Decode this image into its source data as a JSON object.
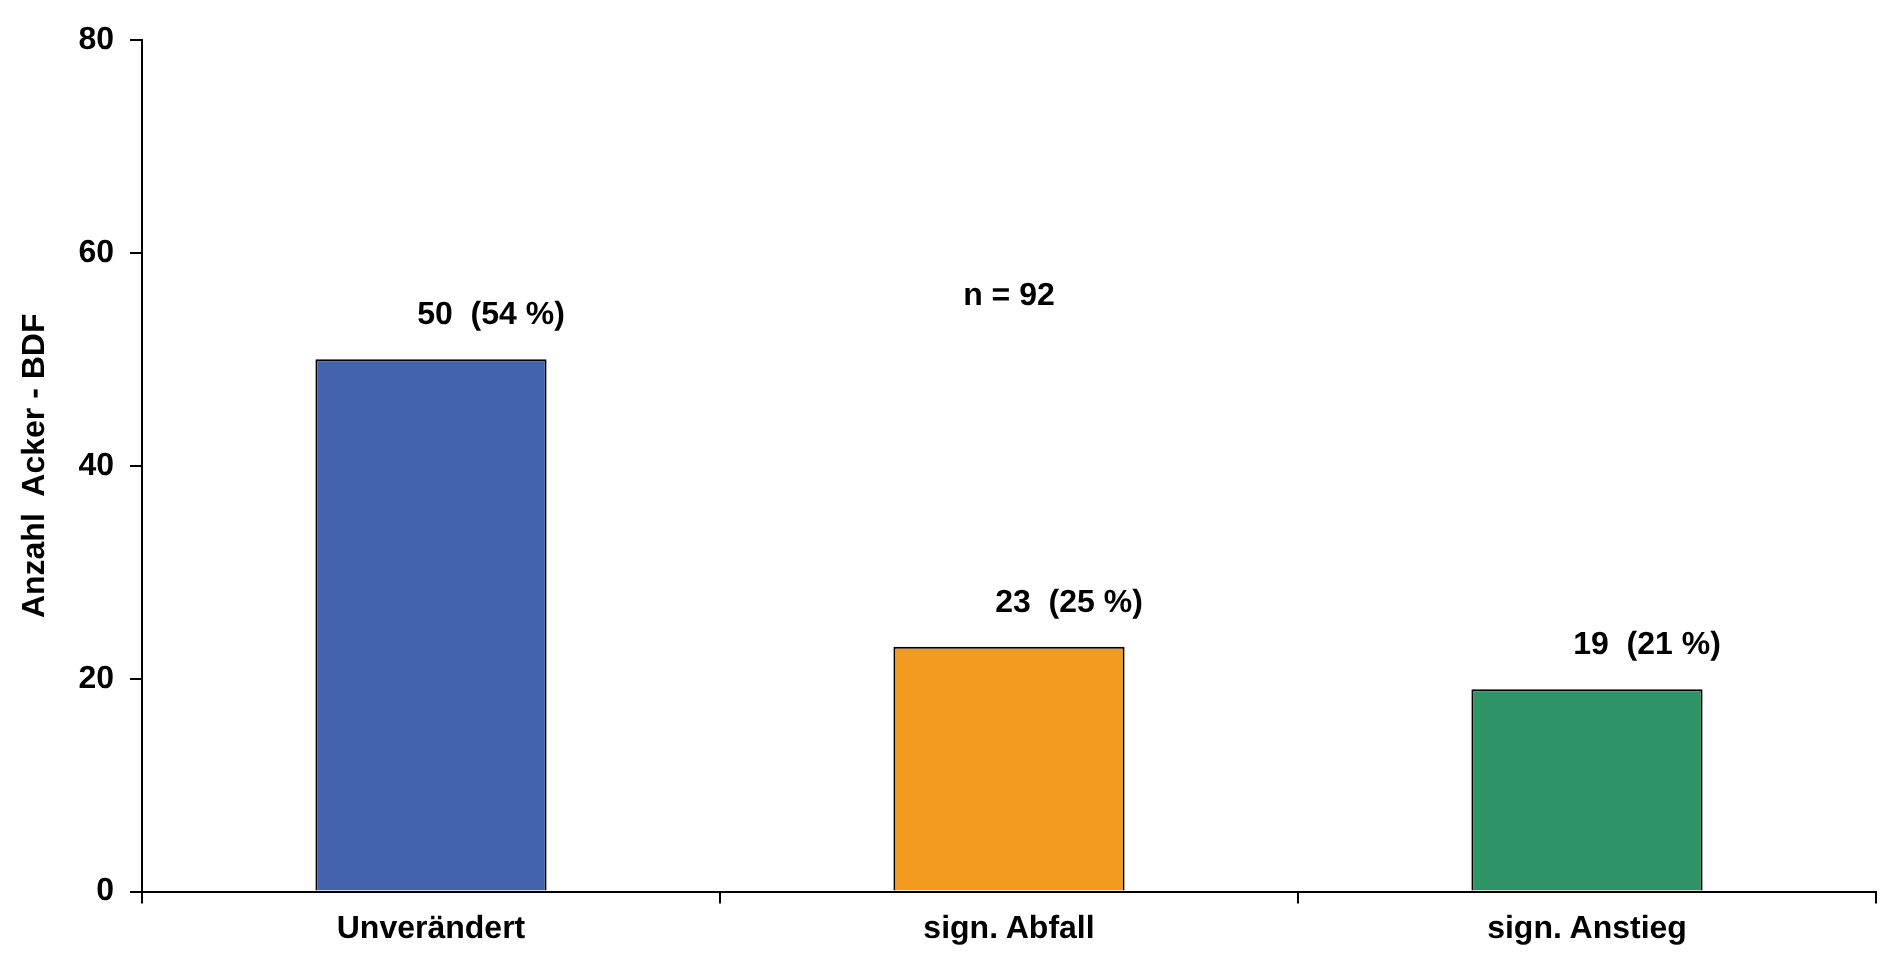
{
  "chart_data": {
    "type": "bar",
    "ylabel": "Anzahl  Acker - BDF",
    "categories": [
      "Unverändert",
      "sign. Abfall",
      "sign. Anstieg"
    ],
    "values": [
      50,
      23,
      19
    ],
    "colors": [
      "#4363ae",
      "#f39a21",
      "#2e9365"
    ],
    "value_labels": [
      "50  (54 %)",
      "23  (25 %)",
      "19  (21 %)"
    ],
    "annotations": [
      "n = 92"
    ],
    "ylim": [
      0,
      80
    ],
    "yticks": [
      0,
      20,
      40,
      60,
      80
    ]
  }
}
